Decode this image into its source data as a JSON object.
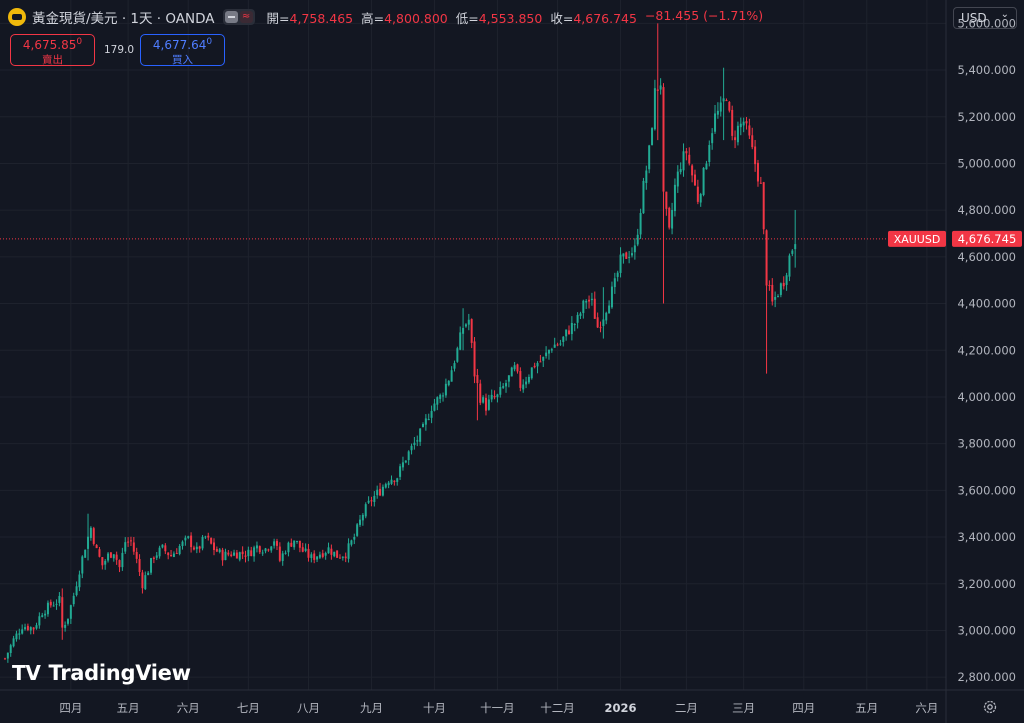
{
  "header": {
    "symbol_title": "黃金現貨/美元 · 1天 · OANDA",
    "open_label": "開=",
    "open_value": "4,758.465",
    "high_label": "高=",
    "high_value": "4,800.800",
    "low_label": "低=",
    "low_value": "4,553.850",
    "close_label": "收=",
    "close_value": "4,676.745",
    "change": "−81.455 (−1.71%)",
    "toggle_icon": "≈"
  },
  "trade": {
    "sell_price": "4,675.85",
    "sell_price_sup": "0",
    "sell_label": "賣出",
    "spread": "179.0",
    "buy_price": "4,677.64",
    "buy_price_sup": "0",
    "buy_label": "買入"
  },
  "currency": {
    "label": "USD"
  },
  "watermark": {
    "text": "TradingView"
  },
  "colors": {
    "up": "#22ab94",
    "down": "#f23645",
    "bg": "#131722",
    "grid": "#1e222d",
    "axis_text": "#b2b5be"
  },
  "chart_data": {
    "type": "candlestick",
    "symbol_tag": "XAUUSD",
    "last_price": 4676.745,
    "last_price_label": "4,676.745",
    "y_ticks": [
      2800,
      3000,
      3200,
      3400,
      3600,
      3800,
      4000,
      4200,
      4400,
      4600,
      4800,
      5000,
      5200,
      5400,
      5600
    ],
    "y_tick_labels": [
      "2,800.000",
      "3,000.000",
      "3,200.000",
      "3,400.000",
      "3,600.000",
      "3,800.000",
      "4,000.000",
      "4,200.000",
      "4,400.000",
      "4,600.000",
      "4,800.000",
      "5,000.000",
      "5,200.000",
      "5,400.000",
      "5,600.000"
    ],
    "ylim": [
      2745,
      5700
    ],
    "x_labels": [
      "四月",
      "五月",
      "六月",
      "七月",
      "八月",
      "九月",
      "十月",
      "十一月",
      "十二月",
      "2026",
      "二月",
      "三月",
      "四月",
      "五月",
      "六月"
    ],
    "x_label_bold": [
      false,
      false,
      false,
      false,
      false,
      false,
      false,
      false,
      false,
      true,
      false,
      false,
      false,
      false,
      false
    ],
    "x_label_day_index": [
      23,
      43,
      64,
      85,
      106,
      128,
      150,
      172,
      193,
      215,
      238,
      258,
      279,
      301,
      322
    ],
    "day_count": 286,
    "anchors": [
      [
        0,
        2880
      ],
      [
        3,
        2960
      ],
      [
        6,
        3020
      ],
      [
        10,
        3010
      ],
      [
        13,
        3080
      ],
      [
        16,
        3110
      ],
      [
        19,
        3130
      ],
      [
        20,
        3010
      ],
      [
        22,
        3060
      ],
      [
        24,
        3150
      ],
      [
        26,
        3260
      ],
      [
        28,
        3360
      ],
      [
        30,
        3440
      ],
      [
        32,
        3340
      ],
      [
        34,
        3280
      ],
      [
        36,
        3320
      ],
      [
        38,
        3340
      ],
      [
        40,
        3270
      ],
      [
        42,
        3380
      ],
      [
        44,
        3380
      ],
      [
        46,
        3300
      ],
      [
        48,
        3200
      ],
      [
        50,
        3260
      ],
      [
        52,
        3320
      ],
      [
        55,
        3350
      ],
      [
        58,
        3320
      ],
      [
        61,
        3360
      ],
      [
        64,
        3390
      ],
      [
        67,
        3340
      ],
      [
        70,
        3400
      ],
      [
        73,
        3350
      ],
      [
        76,
        3320
      ],
      [
        79,
        3330
      ],
      [
        82,
        3330
      ],
      [
        85,
        3330
      ],
      [
        88,
        3360
      ],
      [
        91,
        3350
      ],
      [
        94,
        3390
      ],
      [
        96,
        3300
      ],
      [
        98,
        3350
      ],
      [
        101,
        3390
      ],
      [
        104,
        3340
      ],
      [
        107,
        3310
      ],
      [
        110,
        3330
      ],
      [
        113,
        3350
      ],
      [
        116,
        3320
      ],
      [
        119,
        3330
      ],
      [
        122,
        3400
      ],
      [
        125,
        3500
      ],
      [
        128,
        3560
      ],
      [
        131,
        3600
      ],
      [
        134,
        3650
      ],
      [
        137,
        3660
      ],
      [
        140,
        3740
      ],
      [
        143,
        3800
      ],
      [
        146,
        3860
      ],
      [
        149,
        3960
      ],
      [
        152,
        4000
      ],
      [
        155,
        4080
      ],
      [
        158,
        4200
      ],
      [
        160,
        4300
      ],
      [
        162,
        4330
      ],
      [
        164,
        4100
      ],
      [
        166,
        4000
      ],
      [
        168,
        3960
      ],
      [
        170,
        3990
      ],
      [
        172,
        4000
      ],
      [
        175,
        4060
      ],
      [
        178,
        4120
      ],
      [
        180,
        4050
      ],
      [
        182,
        4080
      ],
      [
        185,
        4140
      ],
      [
        188,
        4160
      ],
      [
        191,
        4220
      ],
      [
        194,
        4230
      ],
      [
        197,
        4290
      ],
      [
        200,
        4330
      ],
      [
        203,
        4420
      ],
      [
        205,
        4400
      ],
      [
        207,
        4300
      ],
      [
        209,
        4350
      ],
      [
        211,
        4420
      ],
      [
        213,
        4480
      ],
      [
        215,
        4580
      ],
      [
        218,
        4620
      ],
      [
        220,
        4630
      ],
      [
        223,
        4900
      ],
      [
        225,
        5050
      ],
      [
        227,
        5300
      ],
      [
        229,
        5350
      ],
      [
        230,
        4850
      ],
      [
        232,
        4700
      ],
      [
        234,
        4900
      ],
      [
        236,
        5000
      ],
      [
        238,
        5050
      ],
      [
        240,
        4950
      ],
      [
        242,
        4850
      ],
      [
        244,
        4950
      ],
      [
        246,
        5100
      ],
      [
        248,
        5200
      ],
      [
        250,
        5230
      ],
      [
        252,
        5300
      ],
      [
        254,
        5100
      ],
      [
        256,
        5150
      ],
      [
        258,
        5180
      ],
      [
        260,
        5100
      ],
      [
        262,
        5000
      ],
      [
        264,
        4900
      ],
      [
        266,
        4500
      ],
      [
        268,
        4400
      ],
      [
        270,
        4450
      ],
      [
        272,
        4500
      ],
      [
        274,
        4600
      ],
      [
        276,
        4676
      ]
    ],
    "spikes": [
      {
        "day": 20,
        "low": 2960,
        "high": 3180
      },
      {
        "day": 29,
        "low": 3300,
        "high": 3500
      },
      {
        "day": 160,
        "low": 4200,
        "high": 4380
      },
      {
        "day": 165,
        "low": 3900,
        "high": 4120
      },
      {
        "day": 209,
        "low": 4250,
        "high": 4470
      },
      {
        "day": 228,
        "low": 5100,
        "high": 5600
      },
      {
        "day": 230,
        "low": 4400,
        "high": 5050
      },
      {
        "day": 251,
        "low": 5100,
        "high": 5410
      },
      {
        "day": 266,
        "low": 4100,
        "high": 4520
      },
      {
        "day": 276,
        "low": 4553.85,
        "high": 4800.8
      }
    ]
  }
}
